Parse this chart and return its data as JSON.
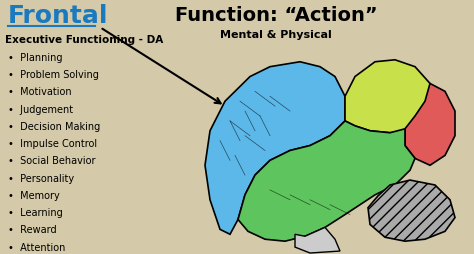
{
  "bg_color": "#d4c9a8",
  "title_frontal": "Frontal",
  "title_function": "Function: “Action”",
  "subtitle_function": "Mental & Physical",
  "exec_label": "Executive Functioning - DA",
  "bullet_items": [
    "Planning",
    "Problem Solving",
    "Motivation",
    "Judgement",
    "Decision Making",
    "Impulse Control",
    "Social Behavior",
    "Personality",
    "Memory",
    "Learning",
    "Reward",
    "Attention"
  ],
  "frontal_color": "#5bb8e8",
  "parietal_color": "#c8e04a",
  "occipital_color": "#e05a5a",
  "temporal_color": "#5ec45e",
  "cerebellum_color": "#aaaaaa",
  "text_color": "#000000",
  "frontal_label_color": "#1a7abf"
}
